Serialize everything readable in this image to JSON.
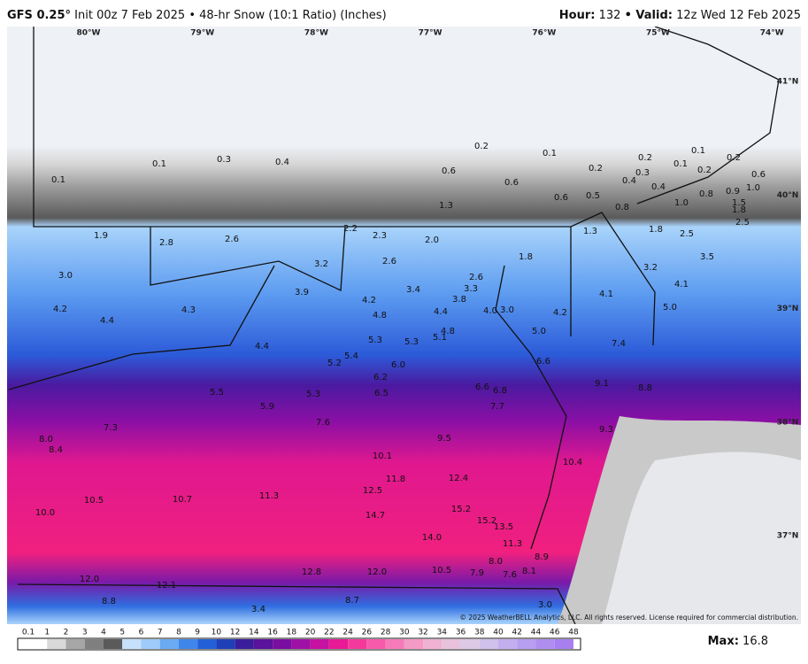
{
  "header": {
    "model": "GFS 0.25°",
    "info": "Init 00z 7 Feb 2025 • 48-hr Snow (10:1 Ratio) (Inches)",
    "hour_label": "Hour:",
    "hour": "132",
    "valid_label": "• Valid:",
    "valid": "12z Wed 12 Feb 2025"
  },
  "lon_labels": [
    "80°W",
    "79°W",
    "78°W",
    "77°W",
    "76°W",
    "75°W",
    "74°W"
  ],
  "lat_labels": [
    "41°N",
    "40°N",
    "39°N",
    "38°N",
    "37°N"
  ],
  "point_labels": [
    "0.1",
    "0.1",
    "0.3",
    "0.4",
    "0.2",
    "0.1",
    "0.6",
    "0.6",
    "0.6",
    "0.5",
    "0.2",
    "0.2",
    "0.1",
    "0.2",
    "0.1",
    "0.2",
    "0.3",
    "0.4",
    "0.4",
    "0.6",
    "0.8",
    "0.9",
    "1.0",
    "1.0",
    "1.3",
    "0.8",
    "1.5",
    "1.8",
    "2.5",
    "1.9",
    "2.8",
    "2.6",
    "2.2",
    "2.3",
    "2.0",
    "1.3",
    "1.8",
    "2.5",
    "1.8",
    "3.2",
    "2.6",
    "3.0",
    "3.5",
    "3.2",
    "2.6",
    "3.3",
    "3.9",
    "3.4",
    "3.8",
    "4.2",
    "4.1",
    "4.1",
    "5.0",
    "4.2",
    "4.3",
    "4.4",
    "4.0",
    "3.0",
    "4.2",
    "4.4",
    "4.8",
    "4.8",
    "5.1",
    "5.0",
    "5.3",
    "5.3",
    "4.4",
    "5.4",
    "5.2",
    "7.4",
    "6.6",
    "6.0",
    "6.2",
    "6.6",
    "6.8",
    "9.1",
    "8.8",
    "5.5",
    "5.3",
    "6.5",
    "5.9",
    "7.7",
    "7.6",
    "7.3",
    "9.3",
    "8.0",
    "8.4",
    "9.5",
    "10.1",
    "10.4",
    "11.8",
    "12.4",
    "12.5",
    "11.3",
    "10.7",
    "10.5",
    "10.0",
    "14.7",
    "15.2",
    "15.2",
    "13.5",
    "14.0",
    "11.3",
    "8.9",
    "8.0",
    "7.9",
    "7.6",
    "8.1",
    "10.5",
    "12.8",
    "12.0",
    "12.0",
    "12.1",
    "8.8",
    "8.7",
    "3.4",
    "3.0"
  ],
  "copyright": "© 2025 WeatherBELL Analytics, LLC. All rights reserved. License required for commercial distribution.",
  "legend": {
    "ticks": [
      "0.1",
      "1",
      "2",
      "3",
      "4",
      "5",
      "6",
      "7",
      "8",
      "9",
      "10",
      "12",
      "14",
      "16",
      "18",
      "20",
      "22",
      "24",
      "26",
      "28",
      "30",
      "32",
      "34",
      "36",
      "38",
      "40",
      "42",
      "44",
      "46",
      "48"
    ]
  },
  "max": {
    "label": "Max:",
    "value": "16.8"
  }
}
